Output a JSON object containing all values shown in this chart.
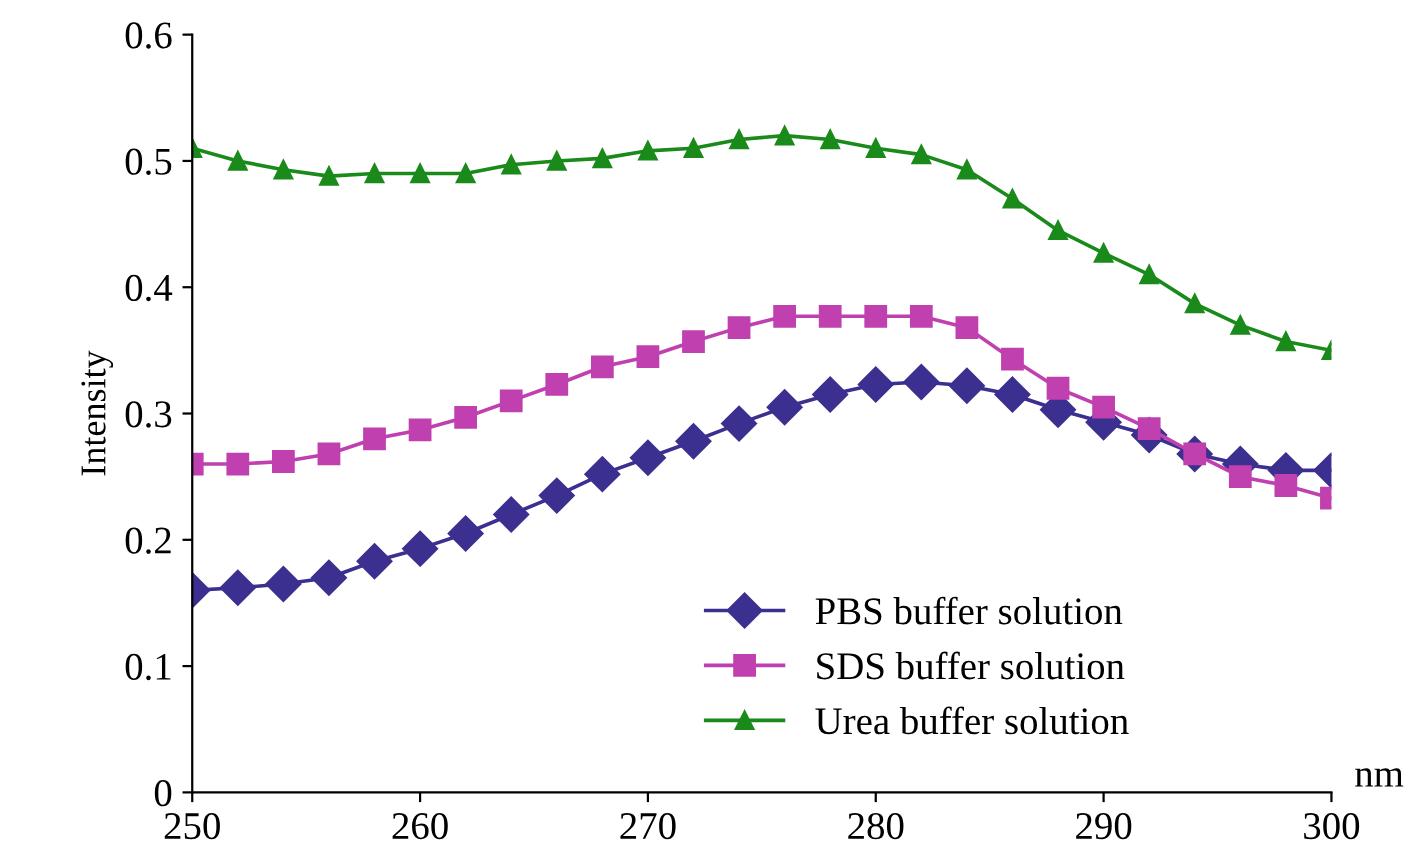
{
  "chart_data": {
    "type": "line",
    "xlabel": "nm",
    "ylabel": "Intensity",
    "x": [
      250,
      252,
      254,
      256,
      258,
      260,
      262,
      264,
      266,
      268,
      270,
      272,
      274,
      276,
      278,
      280,
      282,
      284,
      286,
      288,
      290,
      292,
      294,
      296,
      298,
      300
    ],
    "series": [
      {
        "name": "PBS buffer solution",
        "color": "#3b2f8f",
        "marker": "diamond",
        "values": [
          0.16,
          0.162,
          0.165,
          0.17,
          0.183,
          0.193,
          0.205,
          0.22,
          0.235,
          0.252,
          0.265,
          0.278,
          0.292,
          0.305,
          0.315,
          0.323,
          0.325,
          0.322,
          0.315,
          0.303,
          0.293,
          0.283,
          0.268,
          0.26,
          0.255,
          0.255
        ]
      },
      {
        "name": "SDS buffer solution",
        "color": "#c040b0",
        "marker": "square",
        "values": [
          0.26,
          0.26,
          0.262,
          0.268,
          0.28,
          0.287,
          0.297,
          0.31,
          0.323,
          0.337,
          0.345,
          0.357,
          0.368,
          0.377,
          0.377,
          0.377,
          0.377,
          0.368,
          0.343,
          0.32,
          0.305,
          0.288,
          0.268,
          0.25,
          0.243,
          0.233
        ]
      },
      {
        "name": "Urea buffer solution",
        "color": "#1a8a1a",
        "marker": "triangle",
        "values": [
          0.51,
          0.5,
          0.493,
          0.488,
          0.49,
          0.49,
          0.49,
          0.497,
          0.5,
          0.502,
          0.508,
          0.51,
          0.517,
          0.52,
          0.517,
          0.51,
          0.505,
          0.493,
          0.47,
          0.445,
          0.427,
          0.41,
          0.387,
          0.37,
          0.357,
          0.35
        ]
      }
    ],
    "xlim": [
      250,
      300
    ],
    "xticks": [
      250,
      260,
      270,
      280,
      290,
      300
    ],
    "ylim": [
      0,
      0.6
    ],
    "yticks": [
      0,
      0.1,
      0.2,
      0.3,
      0.4,
      0.5,
      0.6
    ],
    "grid": false,
    "legend": "bottom right",
    "line_style": "solid"
  }
}
